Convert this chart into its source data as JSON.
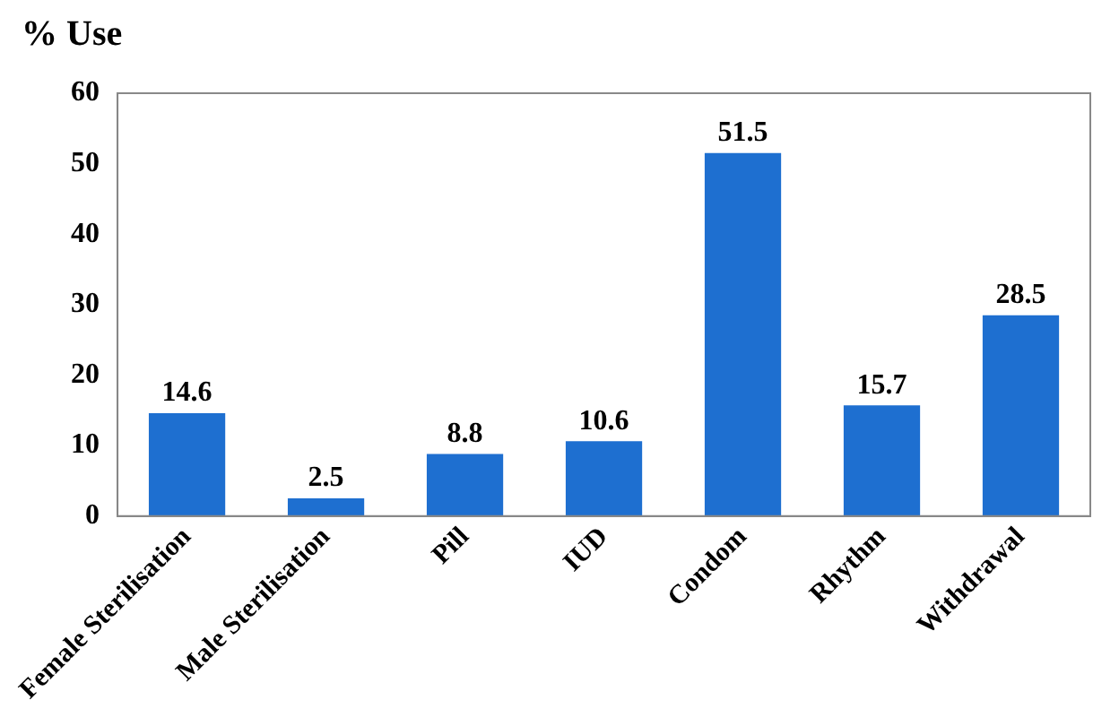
{
  "chart_data": {
    "type": "bar",
    "title": "% Use",
    "categories": [
      "Female Sterilisation",
      "Male Sterilisation",
      "Pill",
      "IUD",
      "Condom",
      "Rhythm",
      "Withdrawal"
    ],
    "values": [
      14.6,
      2.5,
      8.8,
      10.6,
      51.5,
      15.7,
      28.5
    ],
    "color": "#1e6fd0",
    "ylim": [
      0,
      60
    ],
    "yticks": [
      0,
      10,
      20,
      30,
      40,
      50,
      60
    ],
    "grid": false,
    "legend": false,
    "data_labels": true
  }
}
